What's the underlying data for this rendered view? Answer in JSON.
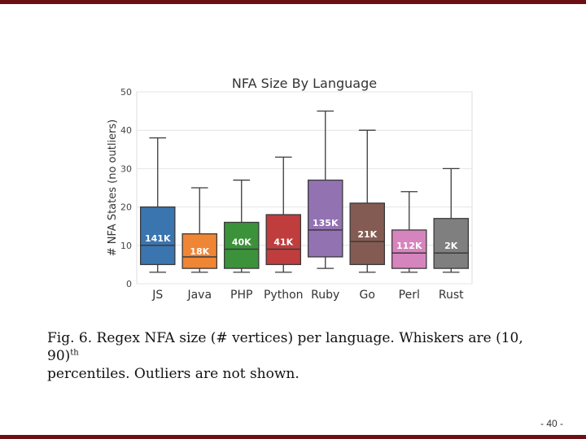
{
  "chart_data": {
    "type": "box",
    "title": "NFA Size By Language",
    "xlabel": "",
    "ylabel": "# NFA States (no outliers)",
    "ylim": [
      0,
      50
    ],
    "yticks": [
      0,
      10,
      20,
      30,
      40,
      50
    ],
    "grid": "horizontal",
    "categories": [
      "JS",
      "Java",
      "PHP",
      "Python",
      "Ruby",
      "Go",
      "Perl",
      "Rust"
    ],
    "boxes": [
      {
        "category": "JS",
        "whisker_low": 3,
        "q1": 5,
        "median": 10,
        "q3": 20,
        "whisker_high": 38,
        "count_label": "141K",
        "color": "#3b75af"
      },
      {
        "category": "Java",
        "whisker_low": 3,
        "q1": 4,
        "median": 7,
        "q3": 13,
        "whisker_high": 25,
        "count_label": "18K",
        "color": "#ef8636"
      },
      {
        "category": "PHP",
        "whisker_low": 3,
        "q1": 4,
        "median": 9,
        "q3": 16,
        "whisker_high": 27,
        "count_label": "40K",
        "color": "#3b923b"
      },
      {
        "category": "Python",
        "whisker_low": 3,
        "q1": 5,
        "median": 9,
        "q3": 18,
        "whisker_high": 33,
        "count_label": "41K",
        "color": "#c03d3e"
      },
      {
        "category": "Ruby",
        "whisker_low": 4,
        "q1": 7,
        "median": 14,
        "q3": 27,
        "whisker_high": 45,
        "count_label": "135K",
        "color": "#9372b2"
      },
      {
        "category": "Go",
        "whisker_low": 3,
        "q1": 5,
        "median": 11,
        "q3": 21,
        "whisker_high": 40,
        "count_label": "21K",
        "color": "#845b53"
      },
      {
        "category": "Perl",
        "whisker_low": 3,
        "q1": 4,
        "median": 8,
        "q3": 14,
        "whisker_high": 24,
        "count_label": "112K",
        "color": "#d684bd"
      },
      {
        "category": "Rust",
        "whisker_low": 3,
        "q1": 4,
        "median": 8,
        "q3": 17,
        "whisker_high": 30,
        "count_label": "2K",
        "color": "#7f7f7f"
      }
    ]
  },
  "caption": {
    "main": "Fig. 6.   Regex NFA size (# vertices) per language. Whiskers are (10, 90)",
    "superscript": "th",
    "tail": "percentiles. Outliers are not shown."
  },
  "page_number": "- 40 -"
}
